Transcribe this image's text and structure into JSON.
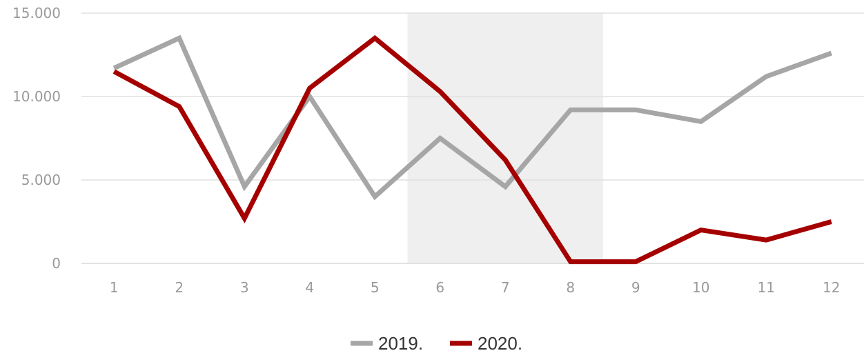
{
  "chart_data": {
    "type": "line",
    "categories": [
      "1",
      "2",
      "3",
      "4",
      "5",
      "6",
      "7",
      "8",
      "9",
      "10",
      "11",
      "12"
    ],
    "y_tick_labels": [
      "0",
      "5.000",
      "10.000",
      "15.000"
    ],
    "y_ticks": [
      0,
      5000,
      10000,
      15000
    ],
    "ylim": [
      0,
      15000
    ],
    "grid": true,
    "legend_position": "bottom",
    "highlight_band": {
      "from_category": "6",
      "to_category": "8",
      "color": "#efefef"
    },
    "series": [
      {
        "name": "2019.",
        "color": "#a6a6a6",
        "values": [
          11700,
          13500,
          4600,
          10000,
          4000,
          7500,
          4600,
          9200,
          9200,
          8500,
          11200,
          12600
        ]
      },
      {
        "name": "2020.",
        "color": "#a50000",
        "values": [
          11500,
          9400,
          2700,
          10500,
          13500,
          10300,
          6200,
          100,
          100,
          2000,
          1400,
          2500
        ]
      }
    ]
  }
}
